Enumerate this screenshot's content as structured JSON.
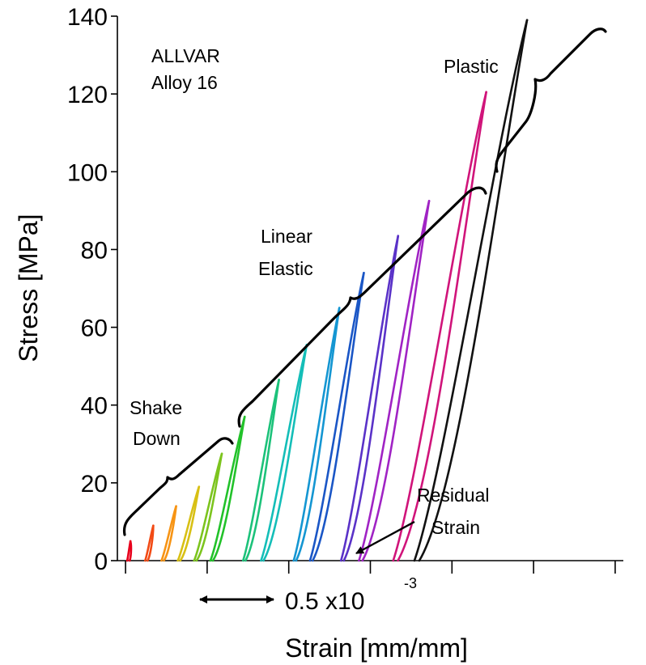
{
  "chart_data": {
    "type": "line",
    "title": "",
    "xlabel": "Strain [mm/mm]",
    "ylabel": "Stress [MPa]",
    "ylim": [
      0,
      140
    ],
    "yticks": [
      0,
      20,
      40,
      60,
      80,
      100,
      120,
      140
    ],
    "xlim_mm_per_mm": [
      -5e-05,
      0.00305
    ],
    "x_tick_labels": "none",
    "grid": false,
    "legend": "none",
    "series": [
      {
        "x_start": 1e-05,
        "x_end": 3e-05,
        "peak": 5,
        "color": "#e8001c"
      },
      {
        "x_start": 0.00012,
        "x_end": 0.00017,
        "peak": 9,
        "color": "#f24a14"
      },
      {
        "x_start": 0.00022,
        "x_end": 0.00031,
        "peak": 14,
        "color": "#f79414"
      },
      {
        "x_start": 0.00032,
        "x_end": 0.00045,
        "peak": 19,
        "color": "#d8c014"
      },
      {
        "x_start": 0.00042,
        "x_end": 0.00059,
        "peak": 27.5,
        "color": "#7cc41e"
      },
      {
        "x_start": 0.00052,
        "x_end": 0.00073,
        "peak": 37,
        "color": "#22c22a"
      },
      {
        "x_start": 0.00072,
        "x_end": 0.00094,
        "peak": 46.5,
        "color": "#1cc27a"
      },
      {
        "x_start": 0.00083,
        "x_end": 0.00111,
        "peak": 55.5,
        "color": "#14beb8"
      },
      {
        "x_start": 0.00103,
        "x_end": 0.00131,
        "peak": 65,
        "color": "#1496d2"
      },
      {
        "x_start": 0.00113,
        "x_end": 0.00146,
        "peak": 74,
        "color": "#1a56c6"
      },
      {
        "x_start": 0.00132,
        "x_end": 0.00167,
        "peak": 83.5,
        "color": "#5a32c8"
      },
      {
        "x_start": 0.00143,
        "x_end": 0.00186,
        "peak": 92.5,
        "color": "#a023c4"
      },
      {
        "x_start": 0.00164,
        "x_end": 0.00221,
        "peak": 120.5,
        "color": "#d0147a"
      },
      {
        "x_start": 0.00177,
        "x_end": 0.00246,
        "peak": 139,
        "color": "#111111"
      }
    ],
    "annotations": {
      "material_line1": "ALLVAR",
      "material_line2": "Alloy 16",
      "shake_down_line1": "Shake",
      "shake_down_line2": "Down",
      "linear_elastic_line1": "Linear",
      "linear_elastic_line2": "Elastic",
      "plastic": "Plastic",
      "residual_line1": "Residual",
      "residual_line2": "Strain",
      "scale_bar_text": "0.5 x10",
      "scale_bar_exponent": "-3"
    }
  }
}
